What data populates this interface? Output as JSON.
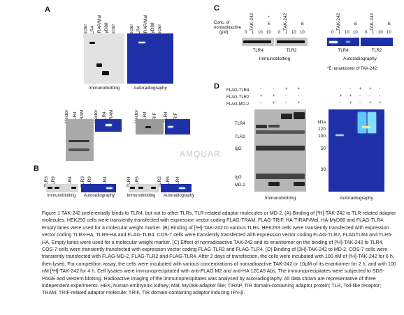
{
  "panels": {
    "A": {
      "label": "A",
      "top_lanes_left": [
        "Vector",
        "TLR4",
        "TIRAP/Mal",
        "MyD88",
        "Vector"
      ],
      "top_lanes_right": [
        "Vector",
        "TLR4",
        "TIRAP/Mal",
        "MyD88",
        "Vector"
      ],
      "captions": [
        "Immunoblotting",
        "Autoradiography"
      ],
      "mid_lanes_1": [
        "Vector",
        "TLR4",
        "TRAM",
        "Vector",
        "TLR4",
        "TRAM"
      ],
      "mid_lanes_2": [
        "Vector",
        "TLR4",
        "TRIF",
        "TLR4",
        "TRIF"
      ]
    },
    "B": {
      "label": "B",
      "lanes_1": [
        "TLR3",
        "TLR9",
        "TLR4",
        "TLR3",
        "TLR9",
        "TLR4"
      ],
      "lanes_2": [
        "TLR4",
        "TLR5",
        "TLR2",
        "TLR5",
        "TLR4"
      ],
      "captions": [
        "Immunoblotting",
        "Autoradiography",
        "Immunoblotting",
        "Autoradiography"
      ]
    },
    "C": {
      "label": "C",
      "conc_label": "Conc. of nonradioactive TAK-242 (μM)",
      "conc_label_lines": [
        "Conc. of",
        "nonradioactive",
        "(μM)"
      ],
      "group_headers": [
        "TAK-242",
        "TAK-242",
        "TAK-242",
        "TAK-242"
      ],
      "conc_values": [
        "0",
        "1",
        "10",
        "10",
        "0",
        "1",
        "10",
        "10",
        "0",
        "1",
        "10",
        "10",
        "0",
        "1",
        "10",
        "10"
      ],
      "e_markers": [
        "E",
        "E",
        "E",
        "E"
      ],
      "asterisk": "*",
      "blot_labels": [
        "TLR4",
        "TLR2",
        "TLR4",
        "TLR2"
      ],
      "captions": [
        "Immunoblotting",
        "Autoradiography"
      ],
      "footnote": "*E: enantiomer of TAK-242"
    },
    "D": {
      "label": "D",
      "row_labels": [
        "FLAG-TLR4",
        "FLAG-TLR2",
        "FLAG-MD-2"
      ],
      "row_signs": [
        [
          "-",
          "-",
          "+",
          "+"
        ],
        [
          "+",
          "+",
          "-",
          "-"
        ],
        [
          "-",
          "+",
          "-",
          "+"
        ]
      ],
      "row_signs_right": [
        [
          "-",
          "-",
          "+",
          "+",
          "-"
        ],
        [
          "+",
          "+",
          "-",
          "-",
          "-"
        ],
        [
          "-",
          "+",
          "-",
          "+",
          "+"
        ]
      ],
      "side_labels": [
        "TLR4",
        "TLR2",
        "IgG",
        "IgG",
        "MD-2"
      ],
      "kda_title": "kDa",
      "kda": [
        "120",
        "100",
        "50",
        "30"
      ],
      "captions": [
        "Immunoblotting",
        "Autoradiography"
      ]
    }
  },
  "watermark": "AMQUAR",
  "caption": "Figure 1 TAK-242 preferentially binds to TLR4, but not to other TLRs, TLR-related adaptor molecules or MD-2. (A) Binding of [³H]-TAK-242 to TLR-related adaptor molecules. HEK293 cells were transiently transfected with expression vector coding FLAG-TRAM, FLAG-TRIF, HA-TIRAP/Mal, HA-MyD88 and FLAG-TLR4. Empty lanes were used for a molecular weight marker. (B) Binding of [³H]-TAK-242 to various TLRs. HEK293 cells were transiently transfected with expression vector coding TLR3-HA, TLR9-HA and FLAG-TLR4. COS-7 cells were transiently transfected with expression vector coding FLAG-TLR2, FLAGTLR4 and TLR5-HA. Empty lanes were used for a molecular weight marker. (C) Effect of nonradioactive TAK-242 and its enantiomer on the binding of [³H]-TAK-242 to TLR4. COS-7 cells were transiently transfected with expression vector coding FLAG-TLR2 and FLAG-TLR4. (D) Binding of [3H]-TAK-242 to MD-2. COS-7 cells were transiently transfected with FLAG-MD-2, FLAG-TLR2 and FLAG-TLR4. After 2 days of transfection, the cells were incubated with 100 nM of [³H]-TAK-242 for 6 h, then lysed. For competition assay, the cells were incubated with various concentrations of nonradioactive TAK-242 or 10μM of its enantiomer for 2 h, and with 100 nM [³H]-TAK-242 for 4 h. Cell lysates were immunoprecipitated with anti-FLAG M2 and anti-HA 12CA5 Abs. The immunoprecipitates were subjected to SDS-PAGE and western blotting. Radioactive imaging of the immunoprecipitates was analysed by autoradiography. All data shown are representative of three independent experiments. HEK, human embryonic kidney; Mal, MyD88-adaptor like; TIRAP, TIR domain-containing adaptor protein; TLR, Toll-like receptor; TRAM, TRIF-related adaptor molecule; TRIF, TIR domain-containing adaptor inducing IFN-β."
}
